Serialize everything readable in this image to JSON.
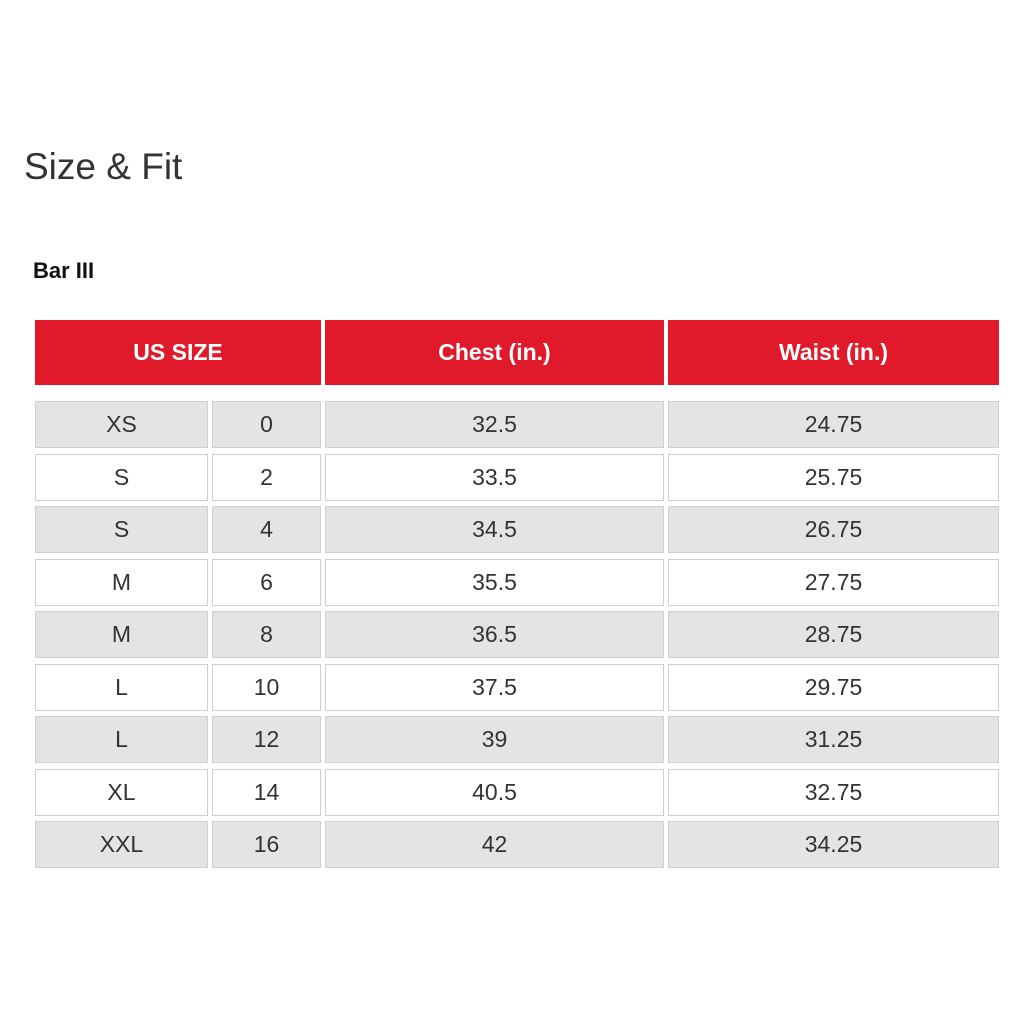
{
  "title": "Size & Fit",
  "brand": "Bar III",
  "colors": {
    "header_bg": "#e01a2b",
    "alt_row_bg": "#e4e4e4"
  },
  "table": {
    "headers": [
      "US SIZE",
      "Chest (in.)",
      "Waist (in.)"
    ],
    "rows": [
      [
        "XS",
        "0",
        "32.5",
        "24.75"
      ],
      [
        "S",
        "2",
        "33.5",
        "25.75"
      ],
      [
        "S",
        "4",
        "34.5",
        "26.75"
      ],
      [
        "M",
        "6",
        "35.5",
        "27.75"
      ],
      [
        "M",
        "8",
        "36.5",
        "28.75"
      ],
      [
        "L",
        "10",
        "37.5",
        "29.75"
      ],
      [
        "L",
        "12",
        "39",
        "31.25"
      ],
      [
        "XL",
        "14",
        "40.5",
        "32.75"
      ],
      [
        "XXL",
        "16",
        "42",
        "34.25"
      ]
    ]
  }
}
